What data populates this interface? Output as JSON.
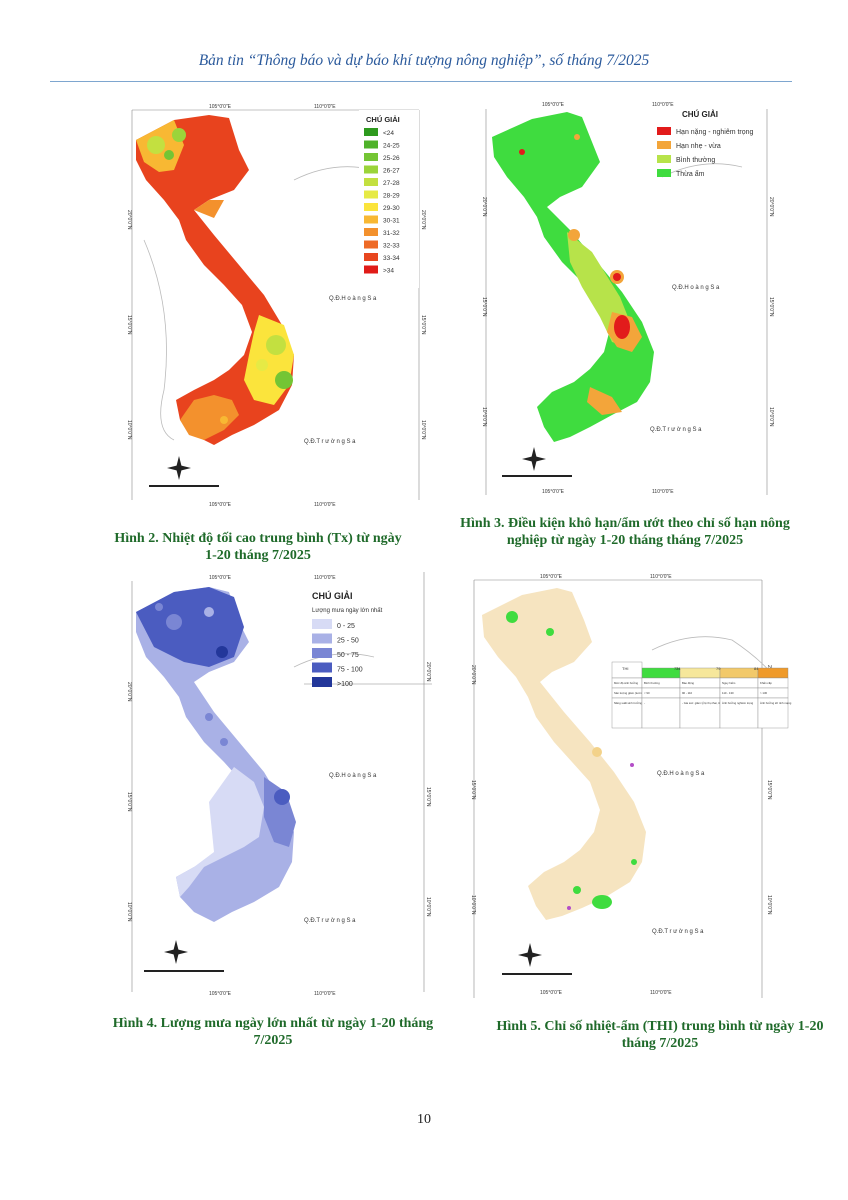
{
  "header": {
    "title": "Bản tin “Thông báo và dự báo khí tượng nông nghiệp”, số tháng 7/2025"
  },
  "page_number": "10",
  "common": {
    "sea_hoang_sa": "Q.Đ.H o à n g  S a",
    "sea_truong_sa": "Q.Đ.T r ư ờ n g  S a",
    "lon_105": "105°0'0\"E",
    "lon_110": "110°0'0\"E",
    "lat_20": "20°0'0\"N",
    "lat_15": "15°0'0\"N",
    "lat_10": "10°0'0\"N"
  },
  "fig2": {
    "caption": "Hình 2. Nhiệt độ tối cao trung bình (Tx) từ ngày 1-20 tháng 7/2025",
    "legend_title": "CHÚ GIẢI",
    "legend": [
      {
        "label": "<24",
        "color": "#2e9a1e"
      },
      {
        "label": "24-25",
        "color": "#4fb22a"
      },
      {
        "label": "25-26",
        "color": "#74c534"
      },
      {
        "label": "26-27",
        "color": "#9bd43a"
      },
      {
        "label": "27-28",
        "color": "#c3e040"
      },
      {
        "label": "28-29",
        "color": "#e6ea45"
      },
      {
        "label": "29-30",
        "color": "#fbe43c"
      },
      {
        "label": "30-31",
        "color": "#f8b833"
      },
      {
        "label": "31-32",
        "color": "#f3912d"
      },
      {
        "label": "32-33",
        "color": "#ee6a26"
      },
      {
        "label": "33-34",
        "color": "#e8461f"
      },
      {
        "label": ">34",
        "color": "#e01b18"
      }
    ]
  },
  "fig3": {
    "caption": "Hình 3. Điều kiện khô hạn/ẩm ướt theo chỉ số hạn nông nghiệp từ ngày 1-20 tháng tháng 7/2025",
    "legend_title": "CHÚ GIẢI",
    "legend": [
      {
        "label": "Hạn nặng - nghiêm trọng",
        "color": "#e21b1b"
      },
      {
        "label": "Hạn nhẹ - vừa",
        "color": "#f3a53a"
      },
      {
        "label": "Bình thường",
        "color": "#b7e34a"
      },
      {
        "label": "Thừa ẩm",
        "color": "#3fdc3f"
      }
    ]
  },
  "fig4": {
    "caption": "Hình 4. Lượng mưa ngày lớn nhất từ ngày 1-20 tháng 7/2025",
    "legend_title": "CHÚ GIẢI",
    "legend_subtitle": "Lượng mưa ngày lớn nhất",
    "legend": [
      {
        "label": "0 - 25",
        "color": "#d7dbf5"
      },
      {
        "label": "25 - 50",
        "color": "#a9b1e6"
      },
      {
        "label": "50 - 75",
        "color": "#7a86d4"
      },
      {
        "label": "75 - 100",
        "color": "#4b5cc0"
      },
      {
        "label": ">100",
        "color": "#23379a"
      }
    ]
  },
  "fig5": {
    "caption": "Hình 5. Chỉ số nhiệt-ẩm (THI) trung bình từ ngày 1-20 tháng 7/2025",
    "thi_table": {
      "header": [
        "THI",
        "72",
        "74",
        "79",
        "84"
      ],
      "rows": [
        [
          "Mức độ ảnh hưởng",
          "Bình thường",
          "Báo động",
          "Nguy hiểm",
          "Khẩn cấp"
        ],
        [
          "Sản lượng giảm (tương đối)",
          "< 90",
          "90 - 110",
          "110 - 130",
          "> 130"
        ],
        [
          "Năng suất sinh trưởng",
          "-",
          "- Gia súc: giảm tỷ lệ thụ thai, tốc độ sinh trưởng",
          "Ảnh hưởng nghiêm trọng",
          "Ảnh hưởng tới tính mạng"
        ]
      ],
      "colors": [
        "#3fdc3f",
        "#f6e79b",
        "#f2c96a",
        "#ef9a2a"
      ]
    }
  }
}
